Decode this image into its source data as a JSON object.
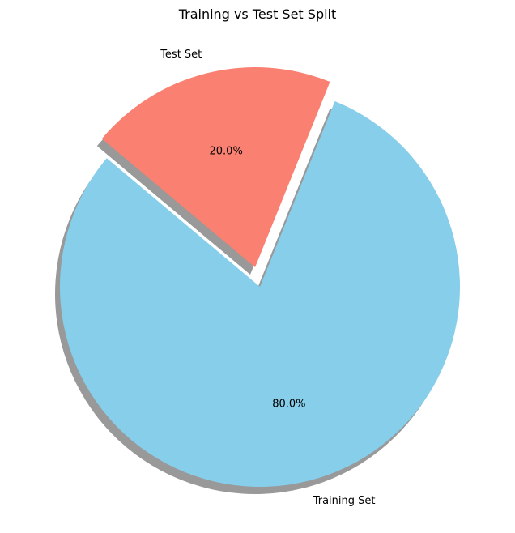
{
  "chart_data": {
    "type": "pie",
    "title": "Training vs Test Set Split",
    "slices": [
      {
        "label": "Training Set",
        "value": 80,
        "pct_label": "80.0%",
        "color": "#87CEEB",
        "explode": 0
      },
      {
        "label": "Test Set",
        "value": 20,
        "pct_label": "20.0%",
        "color": "#FA8072",
        "explode": 0.1
      }
    ],
    "start_angle_deg": 140,
    "shadow": true,
    "legend": "none"
  }
}
